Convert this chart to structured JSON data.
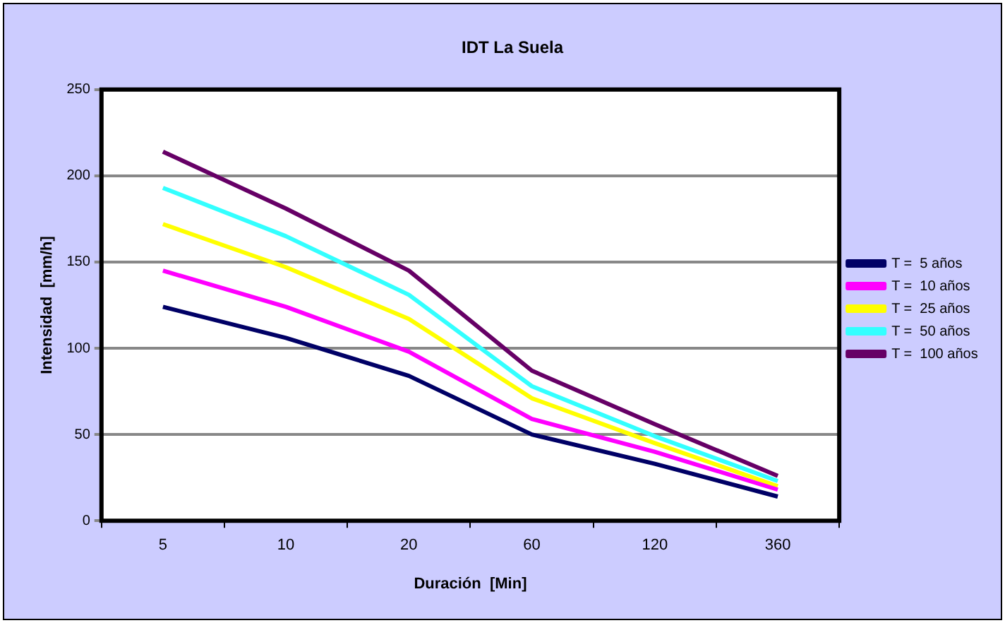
{
  "chart_data": {
    "type": "line",
    "title": "IDT La Suela",
    "xlabel": "Duración  [Min]",
    "ylabel": "Intensidad  [mm/h]",
    "categories": [
      "5",
      "10",
      "20",
      "60",
      "120",
      "360"
    ],
    "series": [
      {
        "name": "T =  5 años",
        "color": "#000066",
        "values": [
          124,
          106,
          84,
          50,
          33,
          14
        ]
      },
      {
        "name": "T =  10 años",
        "color": "#ff00ff",
        "values": [
          145,
          124,
          98,
          59,
          40,
          18
        ]
      },
      {
        "name": "T =  25 años",
        "color": "#ffff00",
        "values": [
          172,
          147,
          117,
          71,
          45,
          20
        ]
      },
      {
        "name": "T =  50 años",
        "color": "#33ffff",
        "values": [
          193,
          165,
          131,
          78,
          49,
          23
        ]
      },
      {
        "name": "T =  100 años",
        "color": "#660066",
        "values": [
          214,
          181,
          145,
          87,
          56,
          26
        ]
      }
    ],
    "ylim": [
      0,
      250
    ],
    "yticks": [
      0,
      50,
      100,
      150,
      200,
      250
    ],
    "grid": "y",
    "legend": "right",
    "marker": "none",
    "line_style": "solid"
  }
}
